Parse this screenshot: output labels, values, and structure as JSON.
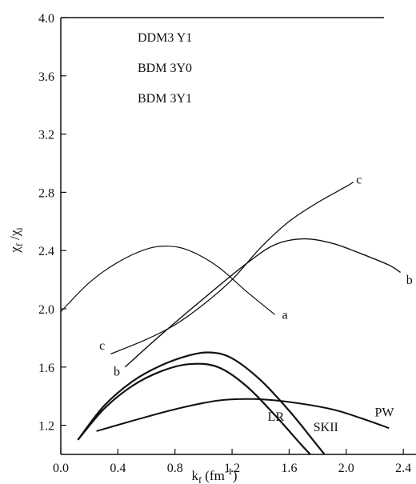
{
  "chart_data": {
    "type": "line",
    "title": "",
    "xlabel": "k_f (fm^-1)",
    "ylabel": "χ_f / χ_i",
    "xlim": [
      0.0,
      2.5
    ],
    "ylim": [
      1.0,
      4.0
    ],
    "x_ticks": [
      "0.0",
      "0.4",
      "0.8",
      "1.2",
      "1.6",
      "2.0",
      "2.4"
    ],
    "x_tick_values": [
      0.0,
      0.4,
      0.8,
      1.2,
      1.6,
      2.0,
      2.4
    ],
    "y_ticks": [
      "1.2",
      "1.6",
      "2.0",
      "2.4",
      "2.8",
      "3.2",
      "3.6",
      "4.0"
    ],
    "y_tick_values": [
      1.2,
      1.6,
      2.0,
      2.4,
      2.8,
      3.2,
      3.6,
      4.0
    ],
    "grid": false,
    "legend_placement": "top-left",
    "legend": [
      "DDM3 Y1",
      "BDM 3Y0",
      "BDM 3Y1"
    ],
    "series": [
      {
        "name": "a",
        "stroke_width": 1.2,
        "x": [
          0.0,
          0.2,
          0.4,
          0.6,
          0.75,
          0.9,
          1.1,
          1.3,
          1.5
        ],
        "y": [
          1.98,
          2.18,
          2.32,
          2.41,
          2.43,
          2.4,
          2.29,
          2.12,
          1.96
        ]
      },
      {
        "name": "b",
        "stroke_width": 1.4,
        "x": [
          0.45,
          0.7,
          1.0,
          1.3,
          1.5,
          1.7,
          1.9,
          2.1,
          2.3,
          2.38
        ],
        "y": [
          1.6,
          1.82,
          2.07,
          2.31,
          2.44,
          2.48,
          2.45,
          2.38,
          2.3,
          2.25
        ]
      },
      {
        "name": "c",
        "stroke_width": 1.3,
        "x": [
          0.35,
          0.6,
          0.8,
          1.0,
          1.2,
          1.4,
          1.6,
          1.8,
          2.0,
          2.05
        ],
        "y": [
          1.69,
          1.79,
          1.89,
          2.03,
          2.2,
          2.42,
          2.6,
          2.73,
          2.84,
          2.87
        ]
      },
      {
        "name": "LR",
        "stroke_width": 2.2,
        "x": [
          0.12,
          0.3,
          0.5,
          0.7,
          0.9,
          1.1,
          1.3,
          1.5,
          1.7,
          1.8
        ],
        "y": [
          1.1,
          1.31,
          1.47,
          1.57,
          1.62,
          1.6,
          1.47,
          1.27,
          1.05,
          0.95
        ]
      },
      {
        "name": "SKII",
        "stroke_width": 2.2,
        "x": [
          0.12,
          0.3,
          0.5,
          0.7,
          0.9,
          1.05,
          1.2,
          1.4,
          1.6,
          1.75,
          1.88
        ],
        "y": [
          1.1,
          1.33,
          1.5,
          1.61,
          1.68,
          1.7,
          1.66,
          1.51,
          1.3,
          1.12,
          0.96
        ]
      },
      {
        "name": "PW",
        "stroke_width": 2.0,
        "x": [
          0.25,
          0.5,
          0.8,
          1.1,
          1.35,
          1.6,
          1.9,
          2.1,
          2.3
        ],
        "y": [
          1.16,
          1.23,
          1.31,
          1.37,
          1.38,
          1.36,
          1.31,
          1.25,
          1.18
        ]
      }
    ],
    "curve_labels": [
      {
        "text": "a",
        "x": 1.55,
        "y": 1.93
      },
      {
        "text": "b",
        "x": 0.37,
        "y": 1.54
      },
      {
        "text": "b",
        "x": 2.42,
        "y": 2.17
      },
      {
        "text": "c",
        "x": 0.27,
        "y": 1.72
      },
      {
        "text": "c",
        "x": 2.07,
        "y": 2.86
      },
      {
        "text": "LR",
        "x": 1.45,
        "y": 1.23
      },
      {
        "text": "SKII",
        "x": 1.77,
        "y": 1.16
      },
      {
        "text": "PW",
        "x": 2.2,
        "y": 1.26
      }
    ]
  }
}
